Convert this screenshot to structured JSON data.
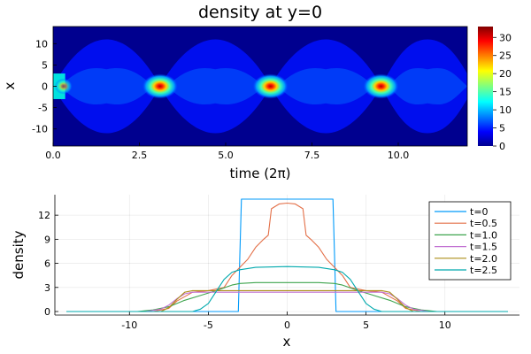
{
  "chart_data": [
    {
      "type": "heatmap",
      "title": "density at y=0",
      "xlabel": "time (2π)",
      "ylabel": "x",
      "xlim": [
        0,
        12
      ],
      "ylim": [
        -14,
        14
      ],
      "xticks": [
        0,
        2.5,
        5,
        7.5,
        10
      ],
      "xtick_labels": [
        "0.0",
        "2.5",
        "5.0",
        "7.5",
        "10.0"
      ],
      "yticks": [
        10,
        5,
        0,
        -5,
        -10
      ],
      "ytick_labels": [
        "10",
        "5",
        "0",
        "-5",
        "-10"
      ],
      "colormap": "jet",
      "colorbar": {
        "min": 0,
        "max": 33,
        "ticks": [
          0,
          5,
          10,
          15,
          20,
          25,
          30
        ],
        "tick_labels": [
          "0",
          "5",
          "10",
          "15",
          "20",
          "25",
          "30"
        ]
      },
      "focus_times": [
        0,
        3.1,
        6.3,
        9.5
      ],
      "peak_density": 33,
      "background_density": 0
    },
    {
      "type": "line",
      "xlabel": "x",
      "ylabel": "density",
      "xlim": [
        -14,
        14
      ],
      "ylim": [
        0,
        14
      ],
      "xticks": [
        -10,
        -5,
        0,
        5,
        10
      ],
      "xtick_labels": [
        "-10",
        "-5",
        "0",
        "5",
        "10"
      ],
      "yticks": [
        0,
        3,
        6,
        9,
        12
      ],
      "ytick_labels": [
        "0",
        "3",
        "6",
        "9",
        "12"
      ],
      "grid": true,
      "legend": "top-right",
      "series": [
        {
          "name": "t=0",
          "color": "#009AFA",
          "x": [
            -14,
            -3.1,
            -3.0,
            -2.9,
            2.9,
            3.0,
            3.1,
            14
          ],
          "y": [
            0,
            0,
            7,
            14,
            14,
            7,
            0,
            0
          ]
        },
        {
          "name": "t=0.5",
          "color": "#E36F47",
          "x": [
            -14,
            -8.5,
            -7.5,
            -7.0,
            -6.0,
            -5.0,
            -4.0,
            -3.5,
            -3.0,
            -2.5,
            -2.0,
            -1.5,
            -1.2,
            -1.0,
            -0.5,
            0,
            0.5,
            1.0,
            1.2,
            1.5,
            2.0,
            2.5,
            3.0,
            3.5,
            4.0,
            5.0,
            6.0,
            7.0,
            7.5,
            8.5,
            14
          ],
          "y": [
            0,
            0,
            0.4,
            1.3,
            2.4,
            2.6,
            3.0,
            4.5,
            5.5,
            6.5,
            8.0,
            9.0,
            9.5,
            12.8,
            13.4,
            13.5,
            13.4,
            12.8,
            9.5,
            9.0,
            8.0,
            6.5,
            5.5,
            4.5,
            3.0,
            2.6,
            2.4,
            1.3,
            0.4,
            0,
            0
          ]
        },
        {
          "name": "t=1.0",
          "color": "#3EA44E",
          "x": [
            -14,
            -9.5,
            -8.5,
            -7.5,
            -6.5,
            -5.5,
            -4.5,
            -3.5,
            -3.0,
            -2.0,
            0,
            2.0,
            3.0,
            3.5,
            4.5,
            5.5,
            6.5,
            7.5,
            8.5,
            9.5,
            14
          ],
          "y": [
            0,
            0,
            0.2,
            0.6,
            1.4,
            2.0,
            2.6,
            3.3,
            3.5,
            3.6,
            3.6,
            3.6,
            3.5,
            3.3,
            2.6,
            2.0,
            1.4,
            0.6,
            0.2,
            0,
            0
          ]
        },
        {
          "name": "t=1.5",
          "color": "#C271D2",
          "x": [
            -14,
            -9.0,
            -8.0,
            -7.5,
            -7.0,
            -6.5,
            -6.0,
            6.0,
            6.5,
            7.0,
            7.5,
            8.0,
            9.0,
            14
          ],
          "y": [
            0,
            0,
            0.3,
            0.8,
            1.6,
            2.2,
            2.4,
            2.4,
            2.2,
            1.6,
            0.8,
            0.3,
            0,
            0
          ]
        },
        {
          "name": "t=2.0",
          "color": "#AC8E18",
          "x": [
            -14,
            -8.0,
            -7.5,
            -7.0,
            -6.5,
            -6.0,
            6.0,
            6.5,
            7.0,
            7.5,
            8.0,
            14
          ],
          "y": [
            0,
            0,
            0.5,
            1.5,
            2.4,
            2.6,
            2.6,
            2.4,
            1.5,
            0.5,
            0,
            0
          ]
        },
        {
          "name": "t=2.5",
          "color": "#00A9AD",
          "x": [
            -14,
            -6.0,
            -5.5,
            -5.0,
            -4.5,
            -4.0,
            -3.5,
            -3.0,
            -2.0,
            0,
            2.0,
            3.0,
            3.5,
            4.0,
            4.5,
            5.0,
            5.5,
            6.0,
            14
          ],
          "y": [
            0,
            0,
            0.3,
            1.0,
            2.5,
            4.0,
            4.9,
            5.2,
            5.5,
            5.6,
            5.5,
            5.2,
            4.9,
            4.0,
            2.5,
            1.0,
            0.3,
            0,
            0
          ]
        }
      ]
    }
  ]
}
